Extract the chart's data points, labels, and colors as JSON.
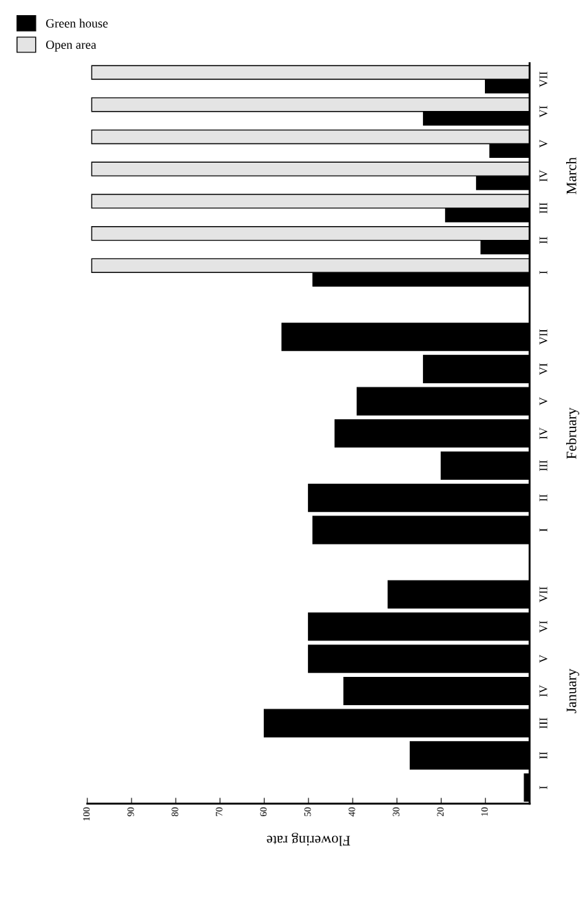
{
  "chart_data": {
    "type": "bar",
    "orientation": "horizontal",
    "xlabel": "Flowering rate",
    "categories": [
      "VII",
      "VI",
      "V",
      "IV",
      "III",
      "II",
      "I",
      null,
      "VII",
      "VI",
      "V",
      "IV",
      "III",
      "II",
      "I",
      null,
      "VII",
      "VI",
      "V",
      "IV",
      "III",
      "II",
      "I"
    ],
    "series": [
      {
        "name": "Green house",
        "color": "#000000",
        "values": [
          10,
          24,
          9,
          12,
          19,
          11,
          49,
          null,
          56,
          24,
          39,
          44,
          20,
          50,
          49,
          null,
          32,
          50,
          50,
          42,
          60,
          27,
          1.2
        ]
      },
      {
        "name": "Open area",
        "color": "#e4e4e4",
        "values": [
          99,
          99,
          99,
          99,
          99,
          99,
          99,
          null,
          null,
          null,
          null,
          null,
          null,
          null,
          null,
          null,
          null,
          null,
          null,
          null,
          null,
          null,
          null
        ]
      }
    ],
    "annotations": [
      "March",
      "February",
      "January"
    ],
    "xlim": [
      100,
      0
    ],
    "xticks": [
      10,
      20,
      30,
      40,
      50,
      60,
      70,
      80,
      90,
      100
    ],
    "legend": "top left",
    "grid": false
  }
}
